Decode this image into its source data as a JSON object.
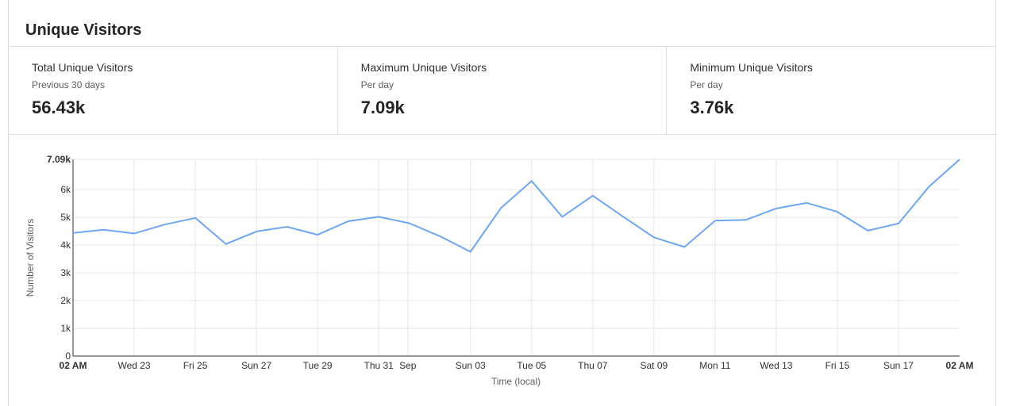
{
  "card": {
    "title": "Unique Visitors"
  },
  "stats": [
    {
      "label": "Total Unique Visitors",
      "sub": "Previous 30 days",
      "value": "56.43k"
    },
    {
      "label": "Maximum Unique Visitors",
      "sub": "Per day",
      "value": "7.09k"
    },
    {
      "label": "Minimum Unique Visitors",
      "sub": "Per day",
      "value": "3.76k"
    }
  ],
  "chart_data": {
    "type": "line",
    "xlabel": "Time (local)",
    "ylabel": "Number of Visitors",
    "ylim": [
      0,
      7090
    ],
    "grid": true,
    "line_color": "#6ea6f2",
    "y_ticks": [
      {
        "value": 0,
        "label": "0"
      },
      {
        "value": 1000,
        "label": "1k"
      },
      {
        "value": 2000,
        "label": "2k"
      },
      {
        "value": 3000,
        "label": "3k"
      },
      {
        "value": 4000,
        "label": "4k"
      },
      {
        "value": 5000,
        "label": "5k"
      },
      {
        "value": 6000,
        "label": "6k"
      },
      {
        "value": 7090,
        "label": "7.09k",
        "bold": true
      }
    ],
    "x_ticks": [
      {
        "index": 0,
        "label": "02 AM",
        "bold": true
      },
      {
        "index": 2,
        "label": "Wed 23"
      },
      {
        "index": 4,
        "label": "Fri 25"
      },
      {
        "index": 6,
        "label": "Sun 27"
      },
      {
        "index": 8,
        "label": "Tue 29"
      },
      {
        "index": 10,
        "label": "Thu 31"
      },
      {
        "index": 10.95,
        "label": "Sep"
      },
      {
        "index": 13,
        "label": "Sun 03"
      },
      {
        "index": 15,
        "label": "Tue 05"
      },
      {
        "index": 17,
        "label": "Thu 07"
      },
      {
        "index": 19,
        "label": "Sat 09"
      },
      {
        "index": 21,
        "label": "Mon 11"
      },
      {
        "index": 23,
        "label": "Wed 13"
      },
      {
        "index": 25,
        "label": "Fri 15"
      },
      {
        "index": 27,
        "label": "Sun 17"
      },
      {
        "index": 29,
        "label": "02 AM",
        "bold": true
      }
    ],
    "values": [
      4440,
      4550,
      4420,
      4740,
      4980,
      4040,
      4490,
      4660,
      4370,
      4860,
      5020,
      4790,
      4320,
      3760,
      5340,
      6310,
      5020,
      5780,
      5020,
      4280,
      3930,
      4880,
      4910,
      5320,
      5520,
      5200,
      4520,
      4780,
      6110,
      7090
    ]
  }
}
